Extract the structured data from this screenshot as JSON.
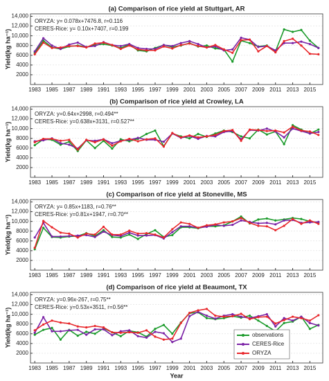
{
  "chart_data": [
    {
      "type": "line",
      "title": "(a) Comparison of rice yield at Stuttgart, AR",
      "annotations": [
        "ORYZA: y= 0.078x+7476.8, r=0.116",
        "CERES-Rice: y= 0.10x+7407, r=0.199"
      ],
      "y_label": "Yield(kg ha⁻¹)",
      "x": [
        1983,
        1984,
        1985,
        1986,
        1987,
        1988,
        1989,
        1990,
        1991,
        1992,
        1993,
        1994,
        1995,
        1996,
        1997,
        1998,
        1999,
        2000,
        2001,
        2002,
        2003,
        2004,
        2005,
        2006,
        2007,
        2008,
        2009,
        2010,
        2011,
        2012,
        2013,
        2014,
        2015,
        2016
      ],
      "series": [
        {
          "color": "#1a9a2a",
          "values": [
            6500,
            9000,
            7600,
            7300,
            7800,
            8000,
            7700,
            8100,
            8300,
            8000,
            7500,
            8200,
            7000,
            6800,
            7500,
            8100,
            7700,
            8000,
            8500,
            7800,
            8000,
            7400,
            7200,
            4700,
            9000,
            8500,
            7800,
            8000,
            6800,
            11300,
            10800,
            11200,
            9000,
            7500
          ]
        },
        {
          "color": "#7b22a6",
          "values": [
            6800,
            9500,
            8000,
            7300,
            8200,
            8600,
            7700,
            7900,
            8700,
            8100,
            7900,
            8300,
            7500,
            7300,
            7300,
            8100,
            7900,
            8500,
            8900,
            8300,
            7600,
            7800,
            7000,
            7200,
            9600,
            9200,
            7700,
            7900,
            7000,
            8500,
            8500,
            8800,
            8300,
            7500
          ]
        },
        {
          "color": "#e8262a",
          "values": [
            6200,
            8600,
            7500,
            7600,
            7900,
            7900,
            7600,
            8400,
            8600,
            8100,
            7300,
            8000,
            7200,
            7000,
            7000,
            7800,
            7400,
            8100,
            8400,
            7900,
            7600,
            8100,
            7200,
            6500,
            9100,
            9200,
            6800,
            7900,
            6600,
            8900,
            9400,
            8000,
            6300,
            6200
          ]
        }
      ],
      "xlim": [
        1982.5,
        2016.5
      ],
      "xticks": [
        1983,
        1985,
        1987,
        1989,
        1991,
        1993,
        1995,
        1997,
        1999,
        2001,
        2003,
        2005,
        2007,
        2009,
        2011,
        2013,
        2015
      ],
      "ylim": [
        0,
        14500
      ],
      "yticks": [
        {
          "value": 2000,
          "label": "2000"
        },
        {
          "value": 4000,
          "label": "4000"
        },
        {
          "value": 6000,
          "label": "6000"
        },
        {
          "value": 8000,
          "label": "8000"
        },
        {
          "value": 10000,
          "label": "10,000"
        },
        {
          "value": 12000,
          "label": "12,000"
        },
        {
          "value": 14000,
          "label": "14,000"
        }
      ],
      "grid": true
    },
    {
      "type": "line",
      "title": "(b) Comparison of rice yield at Crowley, LA",
      "annotations": [
        "ORYZA: y=0.64x+2998, r=0.494**",
        "CERES-Rice: y=0.638x+3131, r=0.527**"
      ],
      "y_label": "Yield(kg ha⁻¹)",
      "x": [
        1983,
        1984,
        1985,
        1986,
        1987,
        1988,
        1989,
        1990,
        1991,
        1992,
        1993,
        1994,
        1995,
        1996,
        1997,
        1998,
        1999,
        2000,
        2001,
        2002,
        2003,
        2004,
        2005,
        2006,
        2007,
        2008,
        2009,
        2010,
        2011,
        2012,
        2013,
        2014,
        2015,
        2016
      ],
      "series": [
        {
          "color": "#1a9a2a",
          "values": [
            6600,
            7800,
            7700,
            6700,
            7300,
            5400,
            7600,
            6000,
            7500,
            5900,
            7800,
            7400,
            7900,
            8900,
            9600,
            6400,
            9000,
            8400,
            8000,
            8900,
            8300,
            9000,
            9600,
            9300,
            8400,
            8000,
            9800,
            8800,
            9400,
            6800,
            10700,
            9800,
            9000,
            9800
          ]
        },
        {
          "color": "#7b22a6",
          "values": [
            7400,
            7600,
            8000,
            7000,
            6700,
            5900,
            7600,
            7500,
            7800,
            7000,
            7500,
            7700,
            8100,
            7700,
            7700,
            7300,
            9000,
            8100,
            8500,
            7900,
            8500,
            8400,
            9300,
            9500,
            7800,
            9700,
            9600,
            10000,
            9400,
            8200,
            10000,
            9500,
            9000,
            9300
          ]
        },
        {
          "color": "#e8262a",
          "values": [
            7200,
            7900,
            7900,
            7500,
            7700,
            5700,
            7700,
            7200,
            7800,
            6500,
            7400,
            7900,
            7400,
            7800,
            8000,
            6300,
            9100,
            8200,
            8600,
            8200,
            8400,
            8700,
            9500,
            9700,
            7500,
            9800,
            9700,
            9500,
            9600,
            9200,
            10400,
            9600,
            9400,
            8700
          ]
        }
      ],
      "xlim": [
        1982.5,
        2016.5
      ],
      "xticks": [
        1983,
        1985,
        1987,
        1989,
        1991,
        1993,
        1995,
        1997,
        1999,
        2001,
        2003,
        2005,
        2007,
        2009,
        2011,
        2013,
        2015
      ],
      "ylim": [
        0,
        14500
      ],
      "yticks": [
        {
          "value": 2000,
          "label": "2000"
        },
        {
          "value": 4000,
          "label": "4000"
        },
        {
          "value": 6000,
          "label": "6000"
        },
        {
          "value": 8000,
          "label": "8000"
        },
        {
          "value": 10000,
          "label": "10,000"
        },
        {
          "value": 12000,
          "label": "12,000"
        },
        {
          "value": 14000,
          "label": "14,000"
        }
      ],
      "grid": true
    },
    {
      "type": "line",
      "title": "(c) Comparison of rice yield at Stoneville, MS",
      "annotations": [
        "ORYZA: y= 0.85x+1183, r=0.76**",
        "CERES-Rice: y=0.81x+1947, r=0.70**"
      ],
      "y_label": "Yield(kg ha⁻¹)",
      "x": [
        1983,
        1984,
        1985,
        1986,
        1987,
        1988,
        1989,
        1990,
        1991,
        1992,
        1993,
        1994,
        1995,
        1996,
        1997,
        1998,
        1999,
        2000,
        2001,
        2002,
        2003,
        2004,
        2005,
        2006,
        2007,
        2008,
        2009,
        2010,
        2011,
        2012,
        2013,
        2014,
        2015,
        2016
      ],
      "series": [
        {
          "color": "#1a9a2a",
          "values": [
            4300,
            8700,
            6800,
            6700,
            6900,
            7000,
            7600,
            7000,
            8200,
            6800,
            6700,
            7300,
            6400,
            7400,
            8200,
            6800,
            7200,
            8800,
            8800,
            8600,
            9000,
            9000,
            9200,
            10000,
            11000,
            9600,
            10400,
            10600,
            10200,
            10400,
            10700,
            10500,
            10000,
            9800
          ]
        },
        {
          "color": "#7b22a6",
          "values": [
            6700,
            9700,
            6900,
            6900,
            7000,
            7100,
            7200,
            6800,
            7900,
            7200,
            7000,
            7700,
            7100,
            7100,
            7200,
            6500,
            7800,
            9000,
            9000,
            8700,
            8900,
            9300,
            9100,
            9300,
            10200,
            9900,
            9600,
            9700,
            9400,
            10200,
            10300,
            9700,
            9800,
            9900
          ]
        },
        {
          "color": "#e8262a",
          "values": [
            4600,
            10100,
            8800,
            7700,
            7500,
            6700,
            7500,
            7300,
            8900,
            7300,
            7300,
            8100,
            7500,
            7600,
            7300,
            6700,
            8400,
            9800,
            9500,
            8700,
            9200,
            9400,
            9800,
            10000,
            10700,
            9700,
            9100,
            9000,
            8200,
            9100,
            10500,
            9500,
            10200,
            9500
          ]
        }
      ],
      "xlim": [
        1982.5,
        2016.5
      ],
      "xticks": [
        1983,
        1985,
        1987,
        1989,
        1991,
        1993,
        1995,
        1997,
        1999,
        2001,
        2003,
        2005,
        2007,
        2009,
        2011,
        2013,
        2015
      ],
      "ylim": [
        0,
        14500
      ],
      "yticks": [
        {
          "value": 2000,
          "label": "2000"
        },
        {
          "value": 4000,
          "label": "4000"
        },
        {
          "value": 6000,
          "label": "6000"
        },
        {
          "value": 8000,
          "label": "8000"
        },
        {
          "value": 10000,
          "label": "10,000"
        },
        {
          "value": 12000,
          "label": "12,000"
        },
        {
          "value": 14000,
          "label": "14,000"
        }
      ],
      "grid": true
    },
    {
      "type": "line",
      "title": "(d) Comparison of rice yield at Beaumont, TX",
      "annotations": [
        "ORYZA: y=0.96x-267, r=0.75**",
        "CERES-Rice: y=0.53x+3511, r=0.56**"
      ],
      "y_label": "Yield(kg ha⁻¹)",
      "x_label": "Year",
      "x": [
        1983,
        1984,
        1985,
        1986,
        1987,
        1988,
        1989,
        1990,
        1991,
        1992,
        1993,
        1994,
        1995,
        1996,
        1997,
        1998,
        1999,
        2000,
        2001,
        2002,
        2003,
        2004,
        2005,
        2006,
        2007,
        2008,
        2009,
        2010,
        2011,
        2012,
        2013,
        2014,
        2015,
        2016
      ],
      "series": [
        {
          "name": "observations",
          "color": "#1a9a2a",
          "values": [
            5800,
            6800,
            7200,
            4800,
            6800,
            5600,
            6400,
            6000,
            7100,
            6300,
            5500,
            6600,
            6300,
            5400,
            7000,
            7800,
            6000,
            8300,
            10200,
            10400,
            9200,
            9000,
            9200,
            9600,
            9300,
            9700,
            8700,
            7600,
            6500,
            8200,
            8500,
            9500,
            7000,
            7800
          ]
        },
        {
          "name": "CERES-Rice",
          "color": "#7b22a6",
          "values": [
            6200,
            9400,
            6500,
            6500,
            6700,
            6800,
            5800,
            6900,
            6900,
            5700,
            6500,
            6700,
            5500,
            5200,
            6400,
            6100,
            4300,
            5000,
            9600,
            10500,
            9700,
            9100,
            9700,
            10000,
            9500,
            9200,
            9600,
            10000,
            7500,
            9200,
            8700,
            9500,
            8200,
            7700
          ]
        },
        {
          "name": "ORYZA",
          "color": "#e8262a",
          "values": [
            6700,
            7900,
            8700,
            8300,
            8100,
            7500,
            7300,
            7600,
            7300,
            6300,
            6200,
            6300,
            6200,
            6700,
            5400,
            4800,
            5000,
            8200,
            10300,
            10800,
            11100,
            9700,
            9500,
            9600,
            10100,
            9000,
            9400,
            9500,
            8100,
            8800,
            9500,
            9200,
            8700,
            9800
          ]
        }
      ],
      "xlim": [
        1982.5,
        2016.5
      ],
      "xticks": [
        1983,
        1985,
        1987,
        1989,
        1991,
        1993,
        1995,
        1997,
        1999,
        2001,
        2003,
        2005,
        2007,
        2009,
        2011,
        2013,
        2015
      ],
      "ylim": [
        0,
        14500
      ],
      "yticks": [
        {
          "value": 2000,
          "label": "2000"
        },
        {
          "value": 4000,
          "label": "4000"
        },
        {
          "value": 6000,
          "label": "6000"
        },
        {
          "value": 8000,
          "label": "8000"
        },
        {
          "value": 10000,
          "label": "10,000"
        },
        {
          "value": 12000,
          "label": "12,000"
        },
        {
          "value": 14000,
          "label": "14,000"
        }
      ],
      "grid": true,
      "legend": "lower right"
    }
  ]
}
